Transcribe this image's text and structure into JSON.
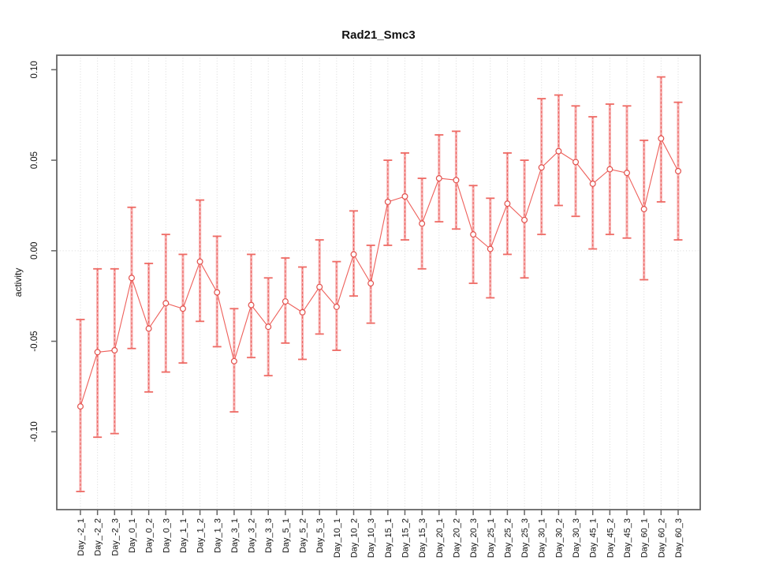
{
  "window": {
    "title": "Rad21_Smc3"
  },
  "chart_data": {
    "type": "scatter",
    "subtype": "point_estimates_with_error_bars",
    "title": "Rad21_Smc3",
    "xlabel": "",
    "ylabel": "activity",
    "legend": "none",
    "grid": {
      "vertical_dotted_per_category": true,
      "horizontal_dotted_at_zero": true
    },
    "ylim": [
      -0.143,
      0.108
    ],
    "yticks": [
      0.1,
      0.05,
      0.0,
      -0.05,
      -0.1
    ],
    "ytick_labels": [
      "0.10",
      "0.05",
      "0.00",
      "-0.05",
      "-0.10"
    ],
    "categories": [
      "Day_-2_1",
      "Day_-2_2",
      "Day_-2_3",
      "Day_0_1",
      "Day_0_2",
      "Day_0_3",
      "Day_1_1",
      "Day_1_2",
      "Day_1_3",
      "Day_3_1",
      "Day_3_2",
      "Day_3_3",
      "Day_5_1",
      "Day_5_2",
      "Day_5_3",
      "Day_10_1",
      "Day_10_2",
      "Day_10_3",
      "Day_15_1",
      "Day_15_2",
      "Day_15_3",
      "Day_20_1",
      "Day_20_2",
      "Day_20_3",
      "Day_25_1",
      "Day_25_2",
      "Day_25_3",
      "Day_30_1",
      "Day_30_2",
      "Day_30_3",
      "Day_45_1",
      "Day_45_2",
      "Day_45_3",
      "Day_60_1",
      "Day_60_2",
      "Day_60_3"
    ],
    "series": [
      {
        "name": "activity",
        "values": [
          -0.086,
          -0.056,
          -0.055,
          -0.015,
          -0.043,
          -0.029,
          -0.032,
          -0.006,
          -0.023,
          -0.061,
          -0.03,
          -0.042,
          -0.028,
          -0.034,
          -0.02,
          -0.031,
          -0.002,
          -0.018,
          0.027,
          0.03,
          0.015,
          0.04,
          0.039,
          0.009,
          0.001,
          0.026,
          0.017,
          0.046,
          0.055,
          0.049,
          0.037,
          0.045,
          0.043,
          0.023,
          0.062,
          0.044
        ],
        "lower": [
          -0.133,
          -0.103,
          -0.101,
          -0.054,
          -0.078,
          -0.067,
          -0.062,
          -0.039,
          -0.053,
          -0.089,
          -0.059,
          -0.069,
          -0.051,
          -0.06,
          -0.046,
          -0.055,
          -0.025,
          -0.04,
          0.003,
          0.006,
          -0.01,
          0.016,
          0.012,
          -0.018,
          -0.026,
          -0.002,
          -0.015,
          0.009,
          0.025,
          0.019,
          0.001,
          0.009,
          0.007,
          -0.016,
          0.027,
          0.006
        ],
        "upper": [
          -0.038,
          -0.01,
          -0.01,
          0.024,
          -0.007,
          0.009,
          -0.002,
          0.028,
          0.008,
          -0.032,
          -0.002,
          -0.015,
          -0.004,
          -0.009,
          0.006,
          -0.006,
          0.022,
          0.003,
          0.05,
          0.054,
          0.04,
          0.064,
          0.066,
          0.036,
          0.029,
          0.054,
          0.05,
          0.084,
          0.086,
          0.08,
          0.074,
          0.081,
          0.08,
          0.061,
          0.096,
          0.082
        ]
      }
    ],
    "colors": {
      "point": "#e2504c",
      "line": "#ee5f5a",
      "errorbar_core": "#ea5a56",
      "errorbar_band": "#f47878",
      "cap": "#ee6a64",
      "grid": "#d9d9d9",
      "axis": "#666666",
      "text": "#111111",
      "background": "#ffffff"
    }
  }
}
